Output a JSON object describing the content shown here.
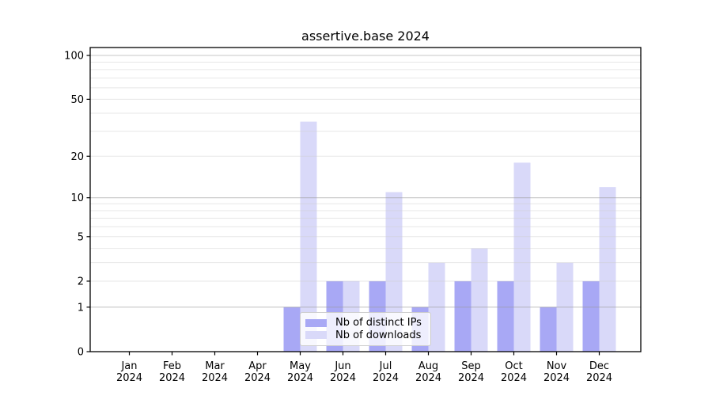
{
  "chart_data": {
    "type": "bar",
    "title": "assertive.base 2024",
    "categories": [
      "Jan",
      "Feb",
      "Mar",
      "Apr",
      "May",
      "Jun",
      "Jul",
      "Aug",
      "Sep",
      "Oct",
      "Nov",
      "Dec"
    ],
    "x_tick_year": "2024",
    "series": [
      {
        "name": "Nb of distinct IPs",
        "color": "#a8a8f5",
        "values": [
          0,
          0,
          0,
          0,
          1,
          2,
          2,
          1,
          2,
          2,
          1,
          2
        ]
      },
      {
        "name": "Nb of downloads",
        "color": "#d9d9f9",
        "values": [
          0,
          0,
          0,
          0,
          35,
          2,
          11,
          3,
          4,
          18,
          3,
          12
        ]
      }
    ],
    "y_axis": {
      "tick_labels": [
        "0",
        "1",
        "2",
        "5",
        "10",
        "20",
        "50",
        "100"
      ],
      "tick_values": [
        0,
        1,
        2,
        5,
        10,
        20,
        50,
        100
      ],
      "scale": "log10(1+x)",
      "range": [
        0,
        113
      ]
    },
    "gridlines": {
      "major_values": [
        1,
        10,
        100
      ],
      "minor_values": [
        2,
        3,
        4,
        5,
        6,
        7,
        8,
        9,
        20,
        30,
        40,
        50,
        60,
        70,
        80,
        90
      ],
      "major_color": "#999999",
      "minor_color": "#cfcfcf"
    },
    "legend": {
      "position": "lower center"
    }
  }
}
